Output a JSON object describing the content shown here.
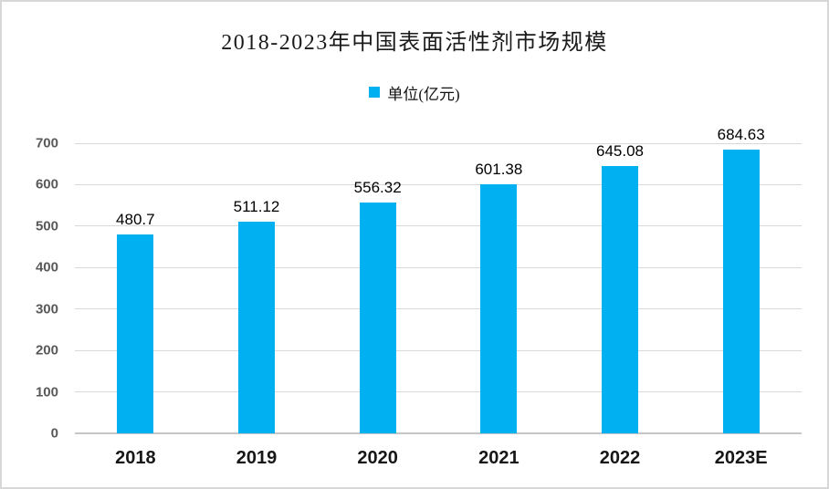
{
  "chart_data": {
    "type": "bar",
    "title": "2018-2023年中国表面活性剂市场规模",
    "legend": {
      "label": "单位(亿元)",
      "position": "top"
    },
    "categories": [
      "2018",
      "2019",
      "2020",
      "2021",
      "2022",
      "2023E"
    ],
    "values": [
      480.7,
      511.12,
      556.32,
      601.38,
      645.08,
      684.63
    ],
    "value_labels": [
      "480.7",
      "511.12",
      "556.32",
      "601.38",
      "645.08",
      "684.63"
    ],
    "xlabel": "",
    "ylabel": "",
    "ylim": [
      0,
      700
    ],
    "yticks": [
      0,
      100,
      200,
      300,
      400,
      500,
      600,
      700
    ],
    "grid": true,
    "colors": {
      "bar": "#00B0F0",
      "legend_marker": "#00B0F0",
      "gridline": "#D9D9D9",
      "axis_line": "#C6C6C6",
      "ytick_text": "#595959",
      "xtick_text": "#171717",
      "value_label_text": "#000000",
      "title_text": "#1A1A1A",
      "frame_border": "#D7D7D7",
      "background": "#FFFFFF"
    }
  }
}
